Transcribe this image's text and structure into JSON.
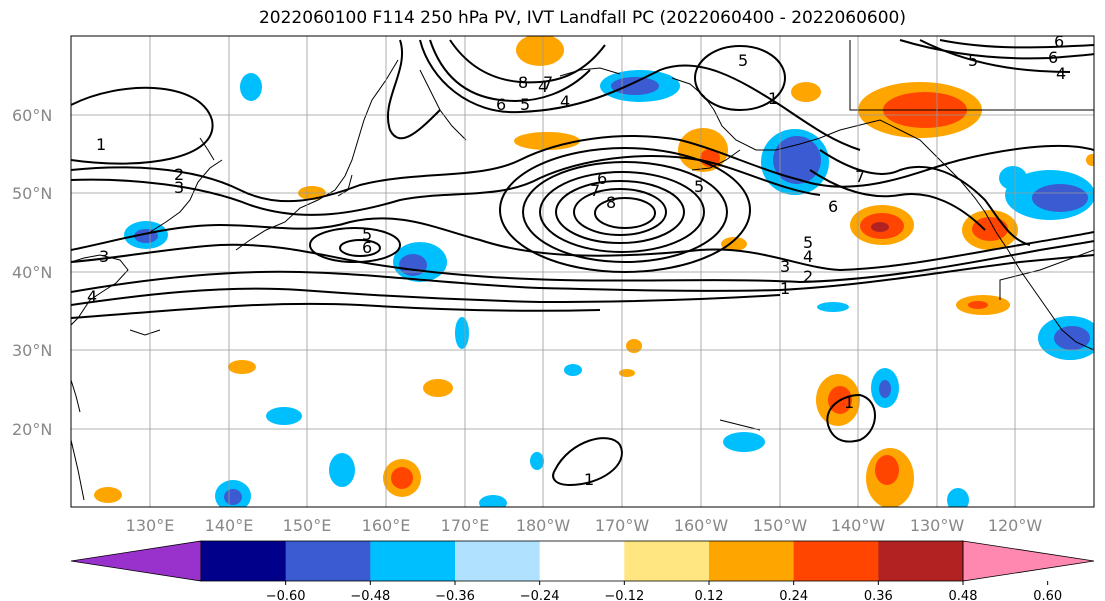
{
  "title": "2022060100 F114 250 hPa PV, IVT Landfall PC (2022060400 - 2022060600)",
  "lat_labels": [
    "60°N",
    "50°N",
    "40°N",
    "30°N",
    "20°N"
  ],
  "lon_labels": [
    "130°E",
    "140°E",
    "150°E",
    "160°E",
    "170°E",
    "180°W",
    "170°W",
    "160°W",
    "150°W",
    "140°W",
    "130°W",
    "120°W"
  ],
  "colorbar": {
    "colors": [
      "#9932cc",
      "#00008b",
      "#3a5bd1",
      "#00bfff",
      "#b0e2ff",
      "#ffffff",
      "#ffe680",
      "#ffa500",
      "#ff4500",
      "#b22222",
      "#ff88b0"
    ],
    "ticks": [
      "−0.60",
      "−0.48",
      "−0.36",
      "−0.24",
      "−0.12",
      "0.12",
      "0.24",
      "0.36",
      "0.48",
      "0.60"
    ]
  },
  "contour_labels": [
    "1",
    "2",
    "3",
    "5",
    "6",
    "4",
    "6",
    "5",
    "4",
    "8",
    "7",
    "5",
    "7",
    "6",
    "6",
    "7",
    "8",
    "5",
    "4",
    "3",
    "2",
    "1",
    "5",
    "6",
    "5",
    "6",
    "4",
    "1",
    "3",
    "4",
    "1",
    "1"
  ]
}
